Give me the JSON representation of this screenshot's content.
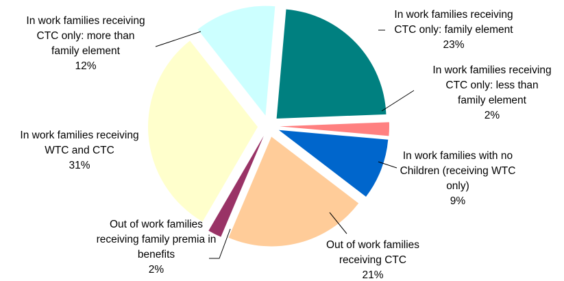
{
  "chart_data": {
    "type": "pie",
    "title": "",
    "legend": "none",
    "slices": [
      {
        "name": "In work families receiving CTC only: family element",
        "value": 23,
        "label": [
          "In work families receiving",
          "CTC only: family element",
          "23%"
        ],
        "color": "#008080"
      },
      {
        "name": "In work families receiving CTC only: less than family element",
        "value": 2,
        "label": [
          "In work families receiving",
          "CTC only: less than",
          "family element",
          "2%"
        ],
        "color": "#FF8080"
      },
      {
        "name": "In work families with no Children (receiving WTC only)",
        "value": 9,
        "label": [
          "In work families with no",
          "Children (receiving WTC",
          "only)",
          "9%"
        ],
        "color": "#0066CC"
      },
      {
        "name": "Out of work families receiving CTC",
        "value": 21,
        "label": [
          "Out of work families",
          "receiving CTC",
          "21%"
        ],
        "color": "#FFCC99"
      },
      {
        "name": "Out of work families receiving family premia in benefits",
        "value": 2,
        "label": [
          "Out of work families",
          "receiving family premia in",
          "benefits",
          "2%"
        ],
        "color": "#993366"
      },
      {
        "name": "In work families receiving WTC and CTC",
        "value": 31,
        "label": [
          "In work families receiving",
          "WTC and CTC",
          "31%"
        ],
        "color": "#FFFFCC"
      },
      {
        "name": "In work families receiving CTC only: more than family element",
        "value": 12,
        "label": [
          "In work families receiving",
          "CTC only: more than",
          "family element",
          "12%"
        ],
        "color": "#CCFFFF"
      }
    ]
  }
}
